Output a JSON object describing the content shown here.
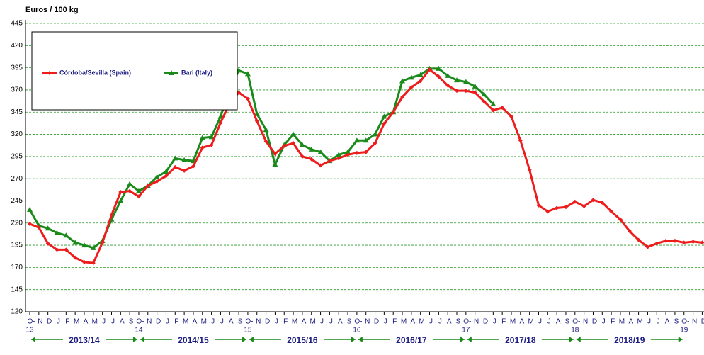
{
  "chart_data": {
    "type": "line",
    "y_label": "Euros / 100 kg",
    "categories": [
      "O-",
      "N",
      "D",
      "J",
      "F",
      "M",
      "A",
      "M",
      "J",
      "J",
      "A",
      "S",
      "O-",
      "N",
      "D",
      "J",
      "F",
      "M",
      "A",
      "M",
      "J",
      "J",
      "A",
      "S",
      "O-",
      "N",
      "D",
      "J",
      "F",
      "M",
      "A",
      "M",
      "J",
      "J",
      "A",
      "S",
      "O-",
      "N",
      "D",
      "J",
      "F",
      "M",
      "A",
      "M",
      "J",
      "J",
      "A",
      "S",
      "O-",
      "N",
      "D",
      "J",
      "F",
      "M",
      "A",
      "M",
      "J",
      "J",
      "A",
      "S",
      "O-",
      "N",
      "D",
      "J",
      "F",
      "M",
      "A",
      "M",
      "J",
      "J",
      "A",
      "S",
      "O-",
      "N",
      "D"
    ],
    "year_labels": [
      "13",
      "14",
      "15",
      "16",
      "17",
      "18",
      "19"
    ],
    "season_labels": [
      "2013/14",
      "2014/15",
      "2015/16",
      "2016/17",
      "2017/18",
      "2018/19"
    ],
    "series": [
      {
        "name": "Córdoba/Sevilla (Spain)",
        "color": "#ee1c1c",
        "marker": "diamond",
        "values": [
          219,
          215,
          197,
          190,
          190,
          181,
          176,
          175,
          198,
          229,
          255,
          256,
          250,
          262,
          267,
          273,
          283,
          279,
          284,
          305,
          308,
          333,
          355,
          367,
          360,
          335,
          312,
          298,
          307,
          310,
          295,
          292,
          285,
          290,
          293,
          297,
          299,
          300,
          310,
          332,
          345,
          362,
          373,
          380,
          393,
          385,
          375,
          369,
          369,
          367,
          357,
          347,
          350,
          340,
          313,
          280,
          240,
          233,
          237,
          238,
          244,
          239,
          246,
          243,
          233,
          224,
          211,
          201,
          193,
          197,
          200,
          200,
          198,
          199,
          198
        ]
      },
      {
        "name": "Bari (Italy)",
        "color": "#1a8a1a",
        "marker": "triangle",
        "values": [
          235,
          217,
          214,
          209,
          206,
          198,
          195,
          192,
          200,
          224,
          245,
          264,
          256,
          262,
          272,
          278,
          293,
          291,
          290,
          316,
          317,
          340,
          370,
          392,
          388,
          343,
          325,
          286,
          308,
          320,
          308,
          303,
          300,
          290,
          297,
          300,
          313,
          313,
          320,
          340,
          345,
          380,
          384,
          387,
          394,
          394,
          386,
          381,
          379,
          374,
          365,
          354,
          null,
          null,
          null,
          null,
          null,
          null,
          null,
          null,
          null,
          null,
          null,
          null,
          null,
          null,
          null,
          null,
          null,
          null,
          null,
          null,
          null,
          null,
          null
        ]
      }
    ],
    "ylim": [
      120,
      445
    ],
    "yticks": [
      120,
      145,
      170,
      195,
      220,
      245,
      270,
      295,
      320,
      345,
      370,
      395,
      420,
      445
    ],
    "grid": true
  }
}
